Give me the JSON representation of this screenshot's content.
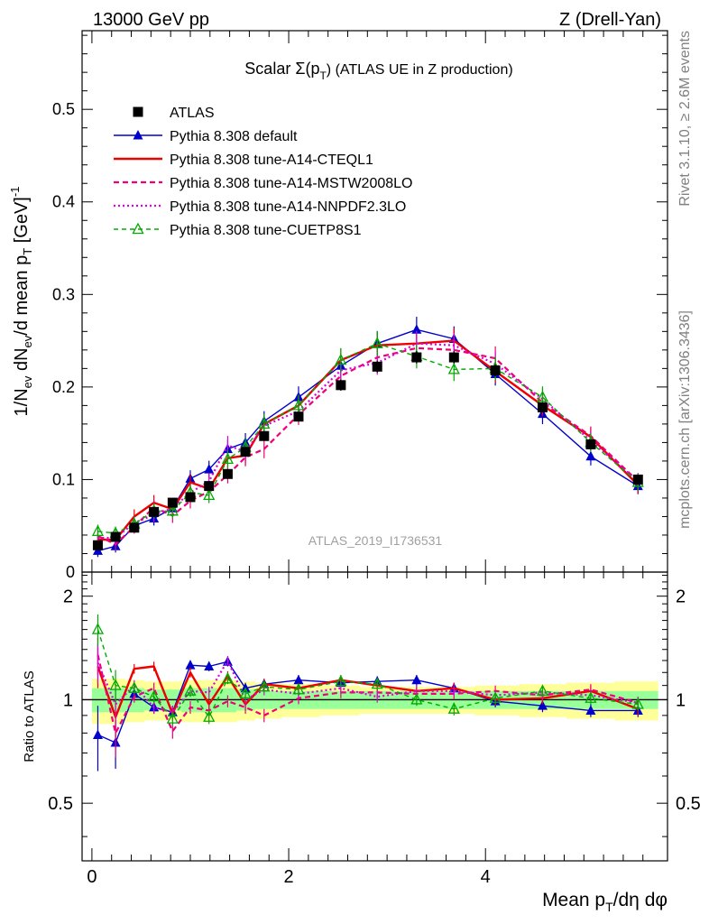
{
  "header": {
    "left": "13000 GeV pp",
    "right": "Z (Drell-Yan)"
  },
  "side_labels": {
    "rivet": "Rivet 3.1.10, ≥ 2.6M events",
    "mcplots": "mcplots.cern.ch [arXiv:1306.3436]"
  },
  "colors": {
    "atlas": "#000000",
    "default": "#0000cc",
    "cteql1": "#ee0000",
    "mstw": "#ee0077",
    "nnpdf": "#dd00dd",
    "cuetp": "#00aa00",
    "band_outer": "#ffff99",
    "band_inner": "#99ff99"
  },
  "chart_data": [
    {
      "id": "main",
      "type": "scatter",
      "title": "Scalar Σ(p_T) (ATLAS UE in Z production)",
      "title_main": "Scalar Σ(p",
      "title_sub": "T",
      "title_rest": ") (ATLAS UE in Z production)",
      "ylabel": "1/N_ev dN_ev/d mean p_T [GeV]^-1",
      "ylabel_parts": {
        "a": "1/N",
        "a_sub": "ev",
        "b": " dN",
        "b_sub": "ev",
        "c": "/d mean p",
        "c_sub": "T",
        "d": " [GeV]",
        "d_sup": "-1"
      },
      "watermark": "ATLAS_2019_I1736531",
      "xlim": [
        -0.1,
        5.85
      ],
      "ylim": [
        0.0,
        0.585
      ],
      "yticks": [
        0,
        0.1,
        0.2,
        0.3,
        0.4,
        0.5
      ],
      "ytick_labels": [
        "0",
        "0.1",
        "0.2",
        "0.3",
        "0.4",
        "0.5"
      ],
      "x": [
        0.06,
        0.24,
        0.43,
        0.63,
        0.82,
        1.0,
        1.19,
        1.38,
        1.56,
        1.75,
        2.1,
        2.53,
        2.9,
        3.3,
        3.68,
        4.1,
        4.58,
        5.07,
        5.55
      ],
      "series": [
        {
          "name": "ATLAS",
          "key": "atlas",
          "style": "data",
          "values": [
            0.029,
            0.038,
            0.048,
            0.065,
            0.075,
            0.081,
            0.093,
            0.106,
            0.13,
            0.147,
            0.168,
            0.202,
            0.222,
            0.232,
            0.232,
            0.218,
            0.178,
            0.138,
            0.1
          ]
        },
        {
          "name": "Pythia 8.308 default",
          "key": "default",
          "style": "solid-tri",
          "values": [
            0.023,
            0.028,
            0.05,
            0.058,
            0.069,
            0.101,
            0.111,
            0.133,
            0.14,
            0.163,
            0.189,
            0.223,
            0.247,
            0.262,
            0.252,
            0.214,
            0.171,
            0.125,
            0.093
          ]
        },
        {
          "name": "Pythia 8.308 tune-A14-CTEQL1",
          "key": "cteql1",
          "style": "solid",
          "values": [
            0.035,
            0.035,
            0.06,
            0.075,
            0.068,
            0.097,
            0.09,
            0.123,
            0.126,
            0.16,
            0.18,
            0.229,
            0.245,
            0.247,
            0.25,
            0.217,
            0.18,
            0.146,
            0.094
          ]
        },
        {
          "name": "Pythia 8.308 tune-A14-MSTW2008LO",
          "key": "mstw",
          "style": "dashed",
          "values": [
            0.039,
            0.03,
            0.049,
            0.07,
            0.061,
            0.077,
            0.087,
            0.105,
            0.124,
            0.133,
            0.17,
            0.212,
            0.232,
            0.242,
            0.24,
            0.231,
            0.183,
            0.147,
            0.098
          ]
        },
        {
          "name": "Pythia 8.308 tune-A14-NNPDF2.3LO",
          "key": "nnpdf",
          "style": "dotted",
          "values": [
            0.037,
            0.037,
            0.053,
            0.062,
            0.069,
            0.086,
            0.098,
            0.137,
            0.13,
            0.158,
            0.174,
            0.218,
            0.226,
            0.247,
            0.245,
            0.225,
            0.187,
            0.142,
            0.098
          ]
        },
        {
          "name": "Pythia 8.308 tune-CUETP8S1",
          "key": "cuetp",
          "style": "dashed-tri",
          "values": [
            0.044,
            0.042,
            0.052,
            0.066,
            0.066,
            0.086,
            0.083,
            0.122,
            0.135,
            0.16,
            0.18,
            0.229,
            0.247,
            0.233,
            0.219,
            0.22,
            0.189,
            0.14,
            0.097
          ]
        }
      ],
      "legend_position": "top-left"
    },
    {
      "id": "ratio",
      "type": "scatter",
      "ylabel": "Ratio to ATLAS",
      "xlabel": "Mean p_T/dη dφ",
      "xlabel_parts": {
        "a": "Mean p",
        "a_sub": "T",
        "b": "/dη dφ"
      },
      "xlim": [
        -0.1,
        5.85
      ],
      "ylim": [
        0.34,
        2.35
      ],
      "yticks": [
        0.5,
        1,
        2
      ],
      "ytick_labels": [
        "0.5",
        "1",
        "2"
      ],
      "xticks": [
        0,
        2,
        4
      ],
      "xtick_labels": [
        "0",
        "2",
        "4"
      ],
      "band_inner": [
        0.08,
        0.08,
        0.08,
        0.07,
        0.07,
        0.08,
        0.08,
        0.08,
        0.07,
        0.06,
        0.06,
        0.06,
        0.06,
        0.06,
        0.06,
        0.06,
        0.06,
        0.06,
        0.06
      ],
      "band_outer": [
        0.15,
        0.15,
        0.14,
        0.13,
        0.13,
        0.14,
        0.14,
        0.14,
        0.13,
        0.12,
        0.11,
        0.1,
        0.09,
        0.09,
        0.09,
        0.1,
        0.11,
        0.12,
        0.13
      ],
      "series": [
        {
          "name": "Pythia 8.308 default",
          "key": "default",
          "style": "solid-tri",
          "values": [
            0.79,
            0.75,
            1.04,
            0.95,
            0.92,
            1.26,
            1.25,
            1.29,
            1.08,
            1.11,
            1.14,
            1.12,
            1.13,
            1.14,
            1.08,
            0.99,
            0.96,
            0.93,
            0.93
          ]
        },
        {
          "name": "Pythia 8.308 tune-A14-CTEQL1",
          "key": "cteql1",
          "style": "solid",
          "values": [
            1.25,
            0.89,
            1.23,
            1.25,
            0.91,
            1.2,
            0.97,
            1.17,
            0.97,
            1.11,
            1.08,
            1.14,
            1.1,
            1.06,
            1.08,
            1.0,
            1.01,
            1.06,
            0.94
          ]
        },
        {
          "name": "Pythia 8.308 tune-A14-MSTW2008LO",
          "key": "mstw",
          "style": "dashed",
          "values": [
            1.35,
            0.8,
            1.02,
            1.08,
            0.81,
            0.95,
            0.93,
            0.99,
            0.95,
            0.9,
            1.01,
            1.05,
            1.05,
            1.04,
            1.04,
            1.06,
            1.03,
            1.07,
            0.98
          ]
        },
        {
          "name": "Pythia 8.308 tune-A14-NNPDF2.3LO",
          "key": "nnpdf",
          "style": "dotted",
          "values": [
            1.28,
            0.97,
            1.1,
            0.95,
            0.92,
            1.06,
            1.05,
            1.3,
            1.0,
            1.07,
            1.04,
            1.08,
            1.02,
            1.06,
            1.06,
            1.03,
            1.05,
            1.03,
            0.98
          ]
        },
        {
          "name": "Pythia 8.308 tune-CUETP8S1",
          "key": "cuetp",
          "style": "dashed-tri",
          "values": [
            1.6,
            1.1,
            1.08,
            1.02,
            0.88,
            1.06,
            0.89,
            1.15,
            1.04,
            1.09,
            1.07,
            1.13,
            1.11,
            1.0,
            0.94,
            1.01,
            1.06,
            1.01,
            0.97
          ]
        }
      ]
    }
  ]
}
